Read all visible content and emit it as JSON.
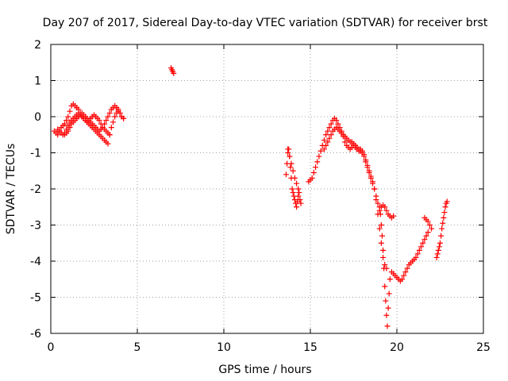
{
  "chart_data": {
    "type": "scatter",
    "title": "Day 207 of 2017, Sidereal Day-to-day VTEC variation (SDTVAR) for receiver brst",
    "xlabel": "GPS time / hours",
    "ylabel": "SDTVAR / TECUs",
    "xlim": [
      0,
      25
    ],
    "ylim": [
      -6,
      2
    ],
    "xticks": [
      "0",
      "5",
      "10",
      "15",
      "20",
      "25"
    ],
    "yticks": [
      "-6",
      "-5",
      "-4",
      "-3",
      "-2",
      "-1",
      "0",
      "1",
      "2"
    ],
    "grid": true,
    "marker": "plus",
    "color": "#ff0000",
    "series": [
      {
        "x": [
          0.2,
          0.3,
          0.4,
          0.5,
          0.6,
          0.7,
          0.8,
          0.9,
          1.0,
          1.1,
          1.2,
          1.3,
          1.4,
          1.5,
          1.6,
          1.7,
          1.8,
          1.9,
          2.0,
          2.1,
          2.2,
          2.3,
          2.4,
          2.5,
          2.6,
          2.7,
          2.8,
          2.9,
          3.0,
          3.1,
          3.2,
          3.3,
          3.4,
          3.5,
          3.6,
          3.7,
          3.8,
          3.9,
          4.0,
          4.1,
          4.2,
          0.4,
          0.5,
          0.6,
          0.7,
          0.8,
          0.9,
          1.0,
          1.1,
          1.2,
          1.3,
          1.4,
          1.5,
          1.6,
          1.7,
          1.8,
          1.9,
          2.0,
          2.1,
          2.2,
          2.3,
          2.4,
          2.5,
          2.6,
          2.7,
          2.8,
          2.9,
          3.0,
          3.1,
          3.2,
          3.3,
          3.4,
          0.8,
          0.9,
          1.0,
          1.1,
          1.2,
          1.3,
          1.4,
          1.5,
          1.6,
          1.7,
          1.8,
          1.9,
          2.0,
          2.1,
          2.2,
          2.3,
          2.4,
          2.5,
          2.6,
          2.7,
          2.8,
          2.9,
          3.0,
          3.1,
          3.2,
          3.3,
          3.4,
          3.5,
          3.6,
          3.7,
          3.8,
          3.9,
          4.0,
          4.1,
          4.2,
          6.95,
          7.0,
          7.05,
          7.1,
          13.6,
          13.65,
          13.7,
          13.75,
          13.8,
          13.85,
          13.9,
          13.95,
          14.0,
          14.05,
          14.1,
          14.15,
          14.2,
          14.25,
          14.3,
          14.35,
          14.4,
          14.45,
          13.7,
          13.8,
          13.9,
          14.0,
          14.1,
          14.2,
          14.3,
          14.9,
          15.0,
          15.1,
          15.2,
          15.3,
          15.4,
          15.5,
          15.6,
          15.7,
          15.8,
          15.9,
          16.0,
          16.1,
          16.2,
          16.3,
          16.4,
          16.5,
          16.6,
          16.7,
          16.8,
          16.9,
          17.0,
          17.1,
          17.2,
          17.3,
          17.4,
          17.5,
          17.6,
          17.7,
          17.8,
          17.9,
          18.0,
          18.1,
          18.2,
          18.3,
          18.4,
          18.5,
          18.6,
          18.7,
          18.8,
          18.9,
          19.0,
          19.1,
          19.2,
          19.3,
          19.4,
          15.8,
          15.9,
          16.0,
          16.1,
          16.2,
          16.3,
          16.4,
          16.5,
          16.6,
          16.7,
          16.8,
          16.9,
          17.0,
          17.1,
          17.2,
          17.3,
          17.4,
          17.5,
          17.6,
          17.7,
          17.8,
          17.9,
          18.0,
          18.1,
          18.2,
          18.3,
          18.4,
          18.5,
          18.6,
          18.7,
          18.8,
          18.9,
          19.0,
          19.1,
          19.2,
          19.3,
          19.4,
          19.5,
          19.6,
          19.7,
          19.8,
          19.0,
          19.05,
          19.1,
          19.15,
          19.2,
          19.25,
          19.3,
          19.35,
          19.4,
          19.45,
          19.5,
          19.55,
          19.6,
          19.7,
          19.8,
          19.9,
          20.0,
          20.1,
          20.2,
          20.3,
          20.4,
          20.5,
          20.6,
          20.7,
          20.8,
          20.9,
          21.0,
          21.1,
          21.2,
          21.3,
          21.4,
          21.5,
          21.6,
          21.7,
          21.8,
          21.6,
          21.7,
          21.8,
          21.9,
          22.0,
          22.3,
          22.35,
          22.4,
          22.45,
          22.5,
          22.55,
          22.6,
          22.65,
          22.7,
          22.75,
          22.8,
          22.85,
          22.9
        ],
        "y": [
          -0.4,
          -0.45,
          -0.5,
          -0.4,
          -0.3,
          -0.25,
          -0.2,
          -0.1,
          0.0,
          0.15,
          0.3,
          0.35,
          0.3,
          0.25,
          0.2,
          0.1,
          0.0,
          -0.05,
          -0.1,
          -0.15,
          -0.2,
          -0.25,
          -0.3,
          -0.35,
          -0.4,
          -0.45,
          -0.5,
          -0.55,
          -0.6,
          -0.65,
          -0.7,
          -0.75,
          -0.5,
          -0.3,
          -0.15,
          0.0,
          0.1,
          0.15,
          0.1,
          0.0,
          -0.05,
          -0.35,
          -0.4,
          -0.45,
          -0.5,
          -0.45,
          -0.35,
          -0.25,
          -0.15,
          -0.1,
          -0.05,
          0.0,
          0.05,
          0.1,
          0.05,
          0.0,
          -0.05,
          -0.1,
          -0.15,
          -0.1,
          -0.05,
          0.0,
          0.05,
          0.0,
          -0.05,
          -0.1,
          -0.2,
          -0.3,
          -0.35,
          -0.4,
          -0.45,
          -0.5,
          -0.5,
          -0.45,
          -0.4,
          -0.3,
          -0.2,
          -0.15,
          -0.1,
          -0.05,
          0.0,
          0.05,
          0.1,
          0.05,
          0.0,
          -0.05,
          -0.1,
          -0.15,
          -0.2,
          -0.25,
          -0.3,
          -0.35,
          -0.4,
          -0.35,
          -0.3,
          -0.2,
          -0.1,
          0.0,
          0.1,
          0.2,
          0.25,
          0.3,
          0.25,
          0.2,
          0.1,
          0.0,
          -0.05,
          1.35,
          1.3,
          1.25,
          1.2,
          -1.6,
          -1.3,
          -1.0,
          -0.9,
          -1.1,
          -1.4,
          -1.7,
          -2.0,
          -2.1,
          -2.2,
          -2.3,
          -2.4,
          -2.5,
          -2.35,
          -2.2,
          -2.1,
          -2.3,
          -2.4,
          -0.9,
          -1.1,
          -1.3,
          -1.5,
          -1.7,
          -1.85,
          -2.0,
          -1.8,
          -1.75,
          -1.7,
          -1.55,
          -1.4,
          -1.25,
          -1.1,
          -0.95,
          -0.8,
          -0.65,
          -0.5,
          -0.4,
          -0.3,
          -0.2,
          -0.1,
          -0.05,
          -0.1,
          -0.2,
          -0.3,
          -0.4,
          -0.55,
          -0.7,
          -0.8,
          -0.85,
          -0.9,
          -0.85,
          -0.8,
          -0.85,
          -0.9,
          -0.95,
          -0.9,
          -0.95,
          -1.05,
          -1.2,
          -1.35,
          -1.5,
          -1.65,
          -1.8,
          -2.0,
          -2.3,
          -2.7,
          -3.1,
          -3.5,
          -3.9,
          -4.1,
          -4.2,
          -0.9,
          -0.8,
          -0.7,
          -0.6,
          -0.5,
          -0.4,
          -0.35,
          -0.3,
          -0.35,
          -0.4,
          -0.45,
          -0.5,
          -0.55,
          -0.6,
          -0.65,
          -0.7,
          -0.7,
          -0.75,
          -0.8,
          -0.85,
          -0.9,
          -0.95,
          -1.0,
          -1.1,
          -1.25,
          -1.4,
          -1.55,
          -1.7,
          -1.85,
          -2.0,
          -2.2,
          -2.4,
          -2.6,
          -2.5,
          -2.45,
          -2.5,
          -2.6,
          -2.7,
          -2.75,
          -2.8,
          -2.75,
          -2.5,
          -2.7,
          -3.0,
          -3.3,
          -3.7,
          -4.2,
          -4.7,
          -5.1,
          -5.5,
          -5.8,
          -5.3,
          -4.9,
          -4.5,
          -4.3,
          -4.35,
          -4.4,
          -4.45,
          -4.5,
          -4.55,
          -4.5,
          -4.4,
          -4.3,
          -4.2,
          -4.1,
          -4.05,
          -4.0,
          -3.95,
          -3.9,
          -3.8,
          -3.7,
          -3.6,
          -3.5,
          -3.4,
          -3.3,
          -3.2,
          -2.8,
          -2.85,
          -2.9,
          -3.0,
          -3.1,
          -3.9,
          -3.8,
          -3.7,
          -3.6,
          -3.5,
          -3.3,
          -3.1,
          -2.95,
          -2.8,
          -2.65,
          -2.5,
          -2.4,
          -2.35
        ]
      }
    ]
  }
}
